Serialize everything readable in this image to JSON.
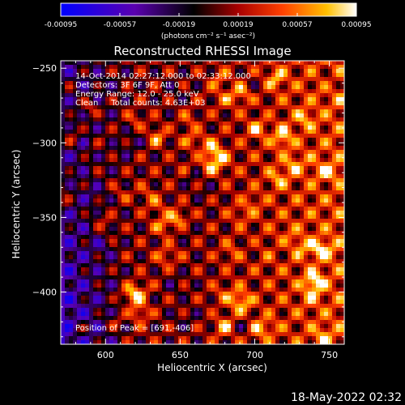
{
  "chart_data": {
    "type": "heatmap",
    "title": "Reconstructed RHESSI Image",
    "xlabel": "Heliocentric X (arcsec)",
    "ylabel": "Heliocentric Y (arcsec)",
    "xlim": [
      570,
      760
    ],
    "ylim": [
      -435,
      -245
    ],
    "xticks": [
      600,
      650,
      700,
      750
    ],
    "yticks": [
      -250,
      -300,
      -350,
      -400
    ],
    "xtick_labels": [
      "600",
      "650",
      "700",
      "750"
    ],
    "ytick_labels": [
      "−250",
      "−300",
      "−350",
      "−400"
    ],
    "colorbar": {
      "range": [
        -0.00095,
        0.00095
      ],
      "tick_labels": [
        "-0.00095",
        "-0.00057",
        "-0.00019",
        "0.00019",
        "0.00057",
        "0.00095"
      ],
      "unit_label": "(photons cm⁻² s⁻¹ asec⁻²)",
      "colormap": [
        "#0000ff",
        "#5a00b0",
        "#000000",
        "#a80000",
        "#ff4000",
        "#ffc000",
        "#ffffff"
      ]
    },
    "annotations": {
      "line1": "14-Oct-2014 02:27:12.000 to 02:33:12.000",
      "line2": "Detectors: 3F 6F 9F, Att 0",
      "line3": "Energy Range: 12.0 - 25.0 keV",
      "line4": "Clean     Total counts: 4.63E+03",
      "peak": "Position of Peak = [691,-406]"
    },
    "peak_position": [
      691,
      -406
    ],
    "grid": false
  },
  "footer": {
    "timestamp": "18-May-2022 02:32"
  }
}
